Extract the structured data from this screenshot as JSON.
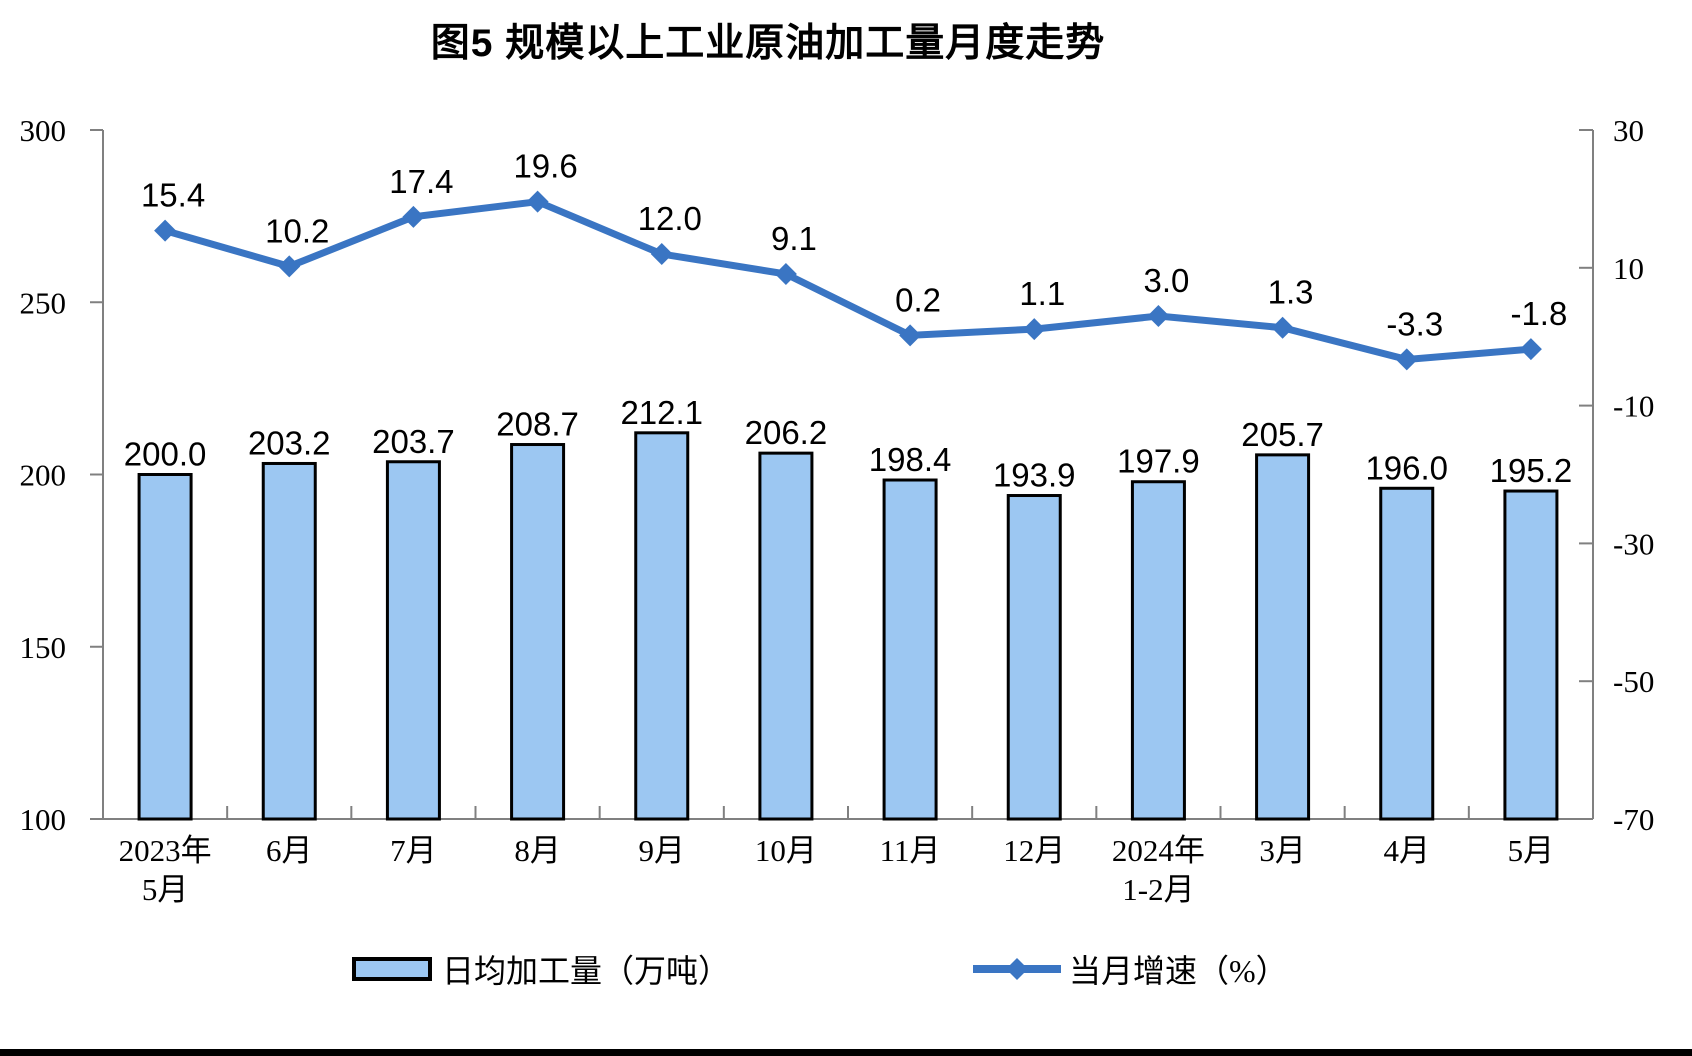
{
  "title": "图5  规模以上工业原油加工量月度走势",
  "legend": {
    "bar": "日均加工量（万吨）",
    "line": "当月增速（%）"
  },
  "colors": {
    "bar_fill": "#9CC7F2",
    "bar_border": "#000000",
    "line": "#3A75C3",
    "axis": "#808080",
    "text": "#000000"
  },
  "chart_data": {
    "type": "combo",
    "title": "图5  规模以上工业原油加工量月度走势",
    "categories": [
      "2023年\n5月",
      "6月",
      "7月",
      "8月",
      "9月",
      "10月",
      "11月",
      "12月",
      "2024年\n1-2月",
      "3月",
      "4月",
      "5月"
    ],
    "series": [
      {
        "name": "日均加工量（万吨）",
        "type": "bar",
        "axis": "left",
        "values": [
          200.0,
          203.2,
          203.7,
          208.7,
          212.1,
          206.2,
          198.4,
          193.9,
          197.9,
          205.7,
          196.0,
          195.2
        ]
      },
      {
        "name": "当月增速（%）",
        "type": "line",
        "axis": "right",
        "values": [
          15.4,
          10.2,
          17.4,
          19.6,
          12.0,
          9.1,
          0.2,
          1.1,
          3.0,
          1.3,
          -3.3,
          -1.8
        ]
      }
    ],
    "left_axis": {
      "ticks": [
        300,
        250,
        200,
        150,
        100
      ],
      "range": [
        100,
        300
      ]
    },
    "right_axis": {
      "ticks": [
        30,
        10,
        -10,
        -30,
        -50,
        -70
      ],
      "range": [
        -70,
        30
      ]
    },
    "grid": false,
    "legend_position": "bottom",
    "data_labels": true
  }
}
